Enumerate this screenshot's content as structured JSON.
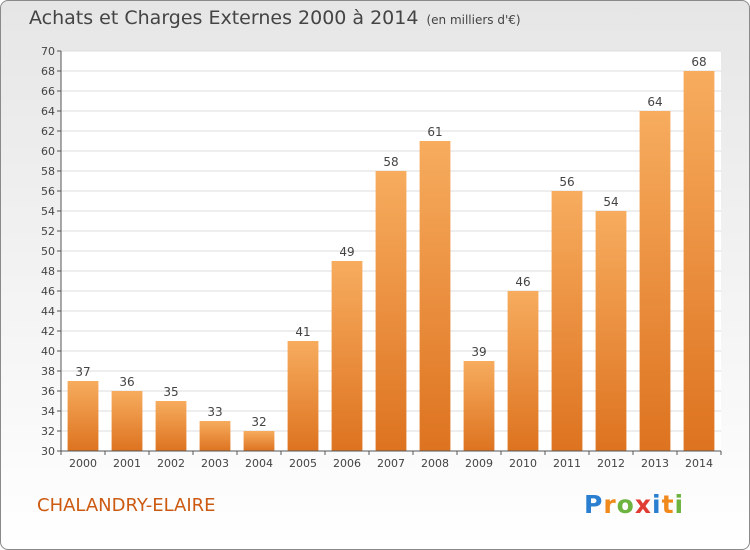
{
  "chart_data": {
    "type": "bar",
    "title": "Achats et Charges Externes 2000 à 2014",
    "subtitle": "(en milliers d'€)",
    "categories": [
      "2000",
      "2001",
      "2002",
      "2003",
      "2004",
      "2005",
      "2006",
      "2007",
      "2008",
      "2009",
      "2010",
      "2011",
      "2012",
      "2013",
      "2014"
    ],
    "values": [
      37,
      36,
      35,
      33,
      32,
      41,
      49,
      58,
      61,
      39,
      46,
      56,
      54,
      64,
      68
    ],
    "ylim": [
      30,
      70
    ],
    "yticks": [
      30,
      32,
      34,
      36,
      38,
      40,
      42,
      44,
      46,
      48,
      50,
      52,
      54,
      56,
      58,
      60,
      62,
      64,
      66,
      68,
      70
    ],
    "grid": true,
    "bar_color": "#f0943e",
    "bar_color_top": "#f7ac5e",
    "bar_color_bottom": "#dd7320"
  },
  "commune_name": "CHALANDRY-ELAIRE",
  "logo": {
    "letters": [
      "P",
      "r",
      "o",
      "x",
      "i",
      "t",
      "i"
    ],
    "colors": [
      "#2b7fd0",
      "#f08a1c",
      "#6db33f",
      "#e03c31",
      "#2b7fd0",
      "#f08a1c",
      "#6db33f"
    ]
  }
}
